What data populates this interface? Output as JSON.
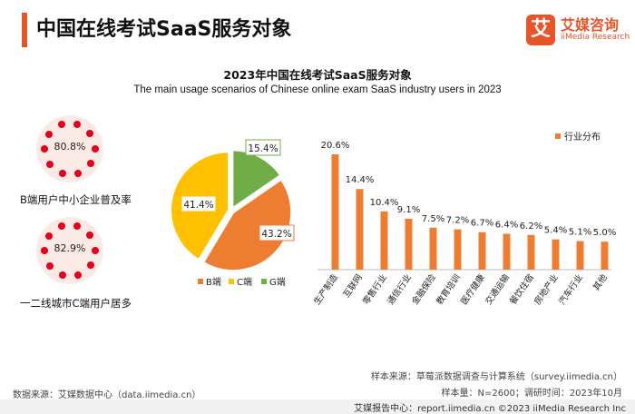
{
  "header": {
    "title": "中国在线考试SaaS服务对象",
    "logo_mark": "艾",
    "logo_cn": "艾媒咨询",
    "logo_en": "iiMedia Research"
  },
  "subtitle_cn": "2023年中国在线考试SaaS服务对象",
  "subtitle_en": "The main usage scenarios of Chinese online exam SaaS industry users in 2023",
  "stats": [
    {
      "value": "80.8%",
      "label": "B端用户中小企业普及率"
    },
    {
      "value": "82.9%",
      "label": "一二线城市C端用户居多"
    }
  ],
  "colors": {
    "orange": "#ed7d31",
    "yellow": "#ffc000",
    "green": "#70ad47",
    "accent": "#e8542a",
    "dot": "#e3001b"
  },
  "chart_data": [
    {
      "type": "pie",
      "categories": [
        "B端",
        "C端",
        "G端"
      ],
      "values": [
        43.2,
        41.4,
        15.4
      ],
      "labels": [
        "43.2%",
        "41.4%",
        "15.4%"
      ],
      "colors": [
        "#ed7d31",
        "#ffc000",
        "#70ad47"
      ],
      "legend_position": "bottom"
    },
    {
      "type": "bar",
      "categories": [
        "生产制造",
        "互联网",
        "零售行业",
        "通信行业",
        "金融保险",
        "教育培训",
        "医疗健康",
        "交通运输",
        "餐饮住宿",
        "房地产业",
        "汽车行业",
        "其他"
      ],
      "values": [
        20.6,
        14.4,
        10.4,
        9.1,
        7.5,
        7.2,
        6.7,
        6.4,
        6.2,
        5.4,
        5.1,
        5.0
      ],
      "labels": [
        "20.6%",
        "14.4%",
        "10.4%",
        "9.1%",
        "7.5%",
        "7.2%",
        "6.7%",
        "6.4%",
        "6.2%",
        "5.4%",
        "5.1%",
        "5.0%"
      ],
      "series_name": "行业分布",
      "ylim": [
        0,
        22
      ],
      "legend_position": "top-right",
      "grid": false
    }
  ],
  "sources": {
    "left": "数据来源：艾媒数据中心（data.iimedia.cn）",
    "right1": "样本来源：草莓派数据调查与计算系统（survey.iimedia.cn）",
    "right2": "样本量：N=2600；调研时间：2023年10月",
    "footer": "艾媒报告中心：report.iimedia.cn  ©2023  iiMedia Research  Inc"
  }
}
